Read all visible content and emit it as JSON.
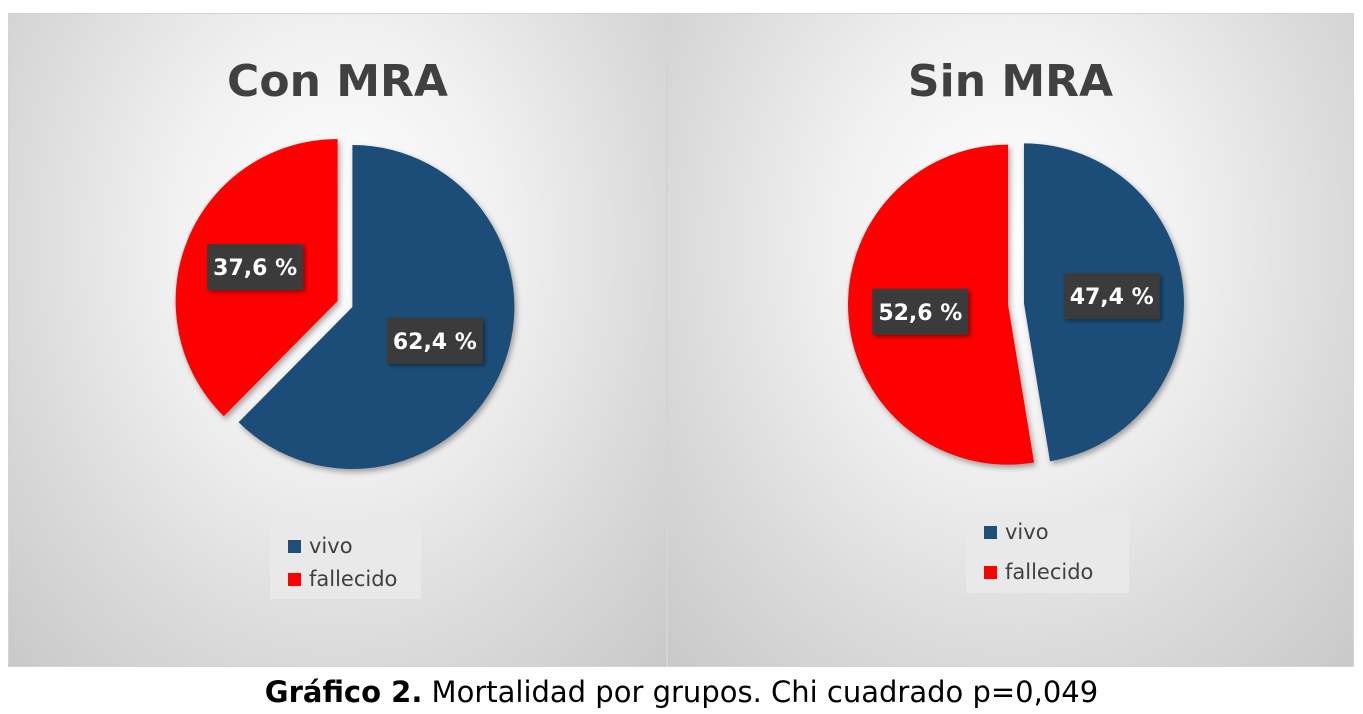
{
  "chart_data": [
    {
      "type": "pie",
      "title": "Con MRA",
      "categories": [
        "vivo",
        "fallecido"
      ],
      "values": [
        62.4,
        37.6
      ],
      "labels": [
        "62,4 %",
        "37,6 %"
      ],
      "colors": [
        "#1f4e79",
        "#ff0000"
      ],
      "legend": "bottom"
    },
    {
      "type": "pie",
      "title": "Sin MRA",
      "categories": [
        "vivo",
        "fallecido"
      ],
      "values": [
        47.4,
        52.6
      ],
      "labels": [
        "47,4 %",
        "52,6 %"
      ],
      "colors": [
        "#1f4e79",
        "#ff0000"
      ],
      "legend": "bottom"
    }
  ],
  "caption": {
    "bold": "Gráfico 2.",
    "text": " Mortalidad por grupos. Chi cuadrado p=0,049"
  }
}
